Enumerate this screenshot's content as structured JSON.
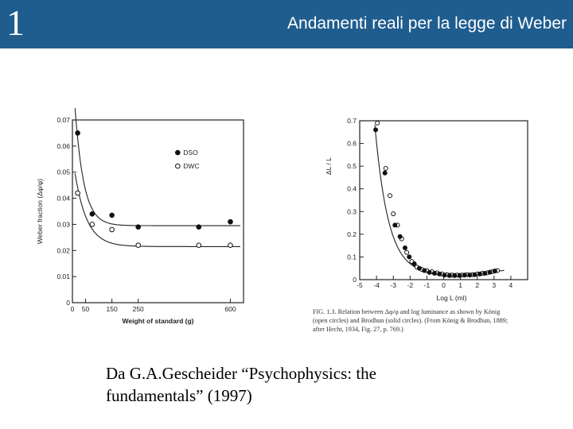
{
  "header": {
    "number": "1",
    "title": "Andamenti reali per la legge di Weber",
    "bg_color": "#1f5d8f"
  },
  "caption": {
    "line1": "Da G.A.Gescheider “Psychophysics: the",
    "line2": "fundamentals” (1997)"
  },
  "chart_data": [
    {
      "type": "scatter",
      "title": "",
      "xlabel": "Weight of standard (g)",
      "ylabel": "Weber fraction (Δφ/φ)",
      "xlim": [
        0,
        650
      ],
      "ylim": [
        0,
        0.07
      ],
      "xticks": [
        0,
        50,
        150,
        250,
        600
      ],
      "xtick_positions": [
        0,
        50,
        150,
        250,
        600
      ],
      "yticks": [
        "0",
        "0.01",
        "0.02",
        "0.03",
        "0.04",
        "0.05",
        "0.06",
        "0.07"
      ],
      "legend": {
        "placement": "top-right",
        "entries": [
          "DSO",
          "DWC"
        ]
      },
      "series": [
        {
          "name": "DSO",
          "marker": "filled-circle",
          "x": [
            20,
            75,
            150,
            250,
            480,
            600
          ],
          "y": [
            0.065,
            0.034,
            0.0335,
            0.029,
            0.029,
            0.031
          ]
        },
        {
          "name": "DWC",
          "marker": "open-circle",
          "x": [
            20,
            75,
            150,
            250,
            480,
            600
          ],
          "y": [
            0.042,
            0.03,
            0.028,
            0.022,
            0.022,
            0.022
          ]
        }
      ]
    },
    {
      "type": "scatter",
      "title": "",
      "xlabel": "Log L (ml)",
      "ylabel": "ΔL / L",
      "xlim": [
        -5,
        5
      ],
      "ylim": [
        0,
        0.7
      ],
      "xticks": [
        -5,
        -4,
        -3,
        -2,
        -1,
        0,
        1,
        2,
        3,
        4
      ],
      "yticks": [
        0,
        0.1,
        0.2,
        0.3,
        0.4,
        0.5,
        0.6,
        0.7
      ],
      "ytick_labels": [
        "0",
        "0.1",
        "0.2",
        "0.3",
        "0.4",
        "0.5",
        "0.6",
        "0.7"
      ],
      "figure_caption": [
        "FIG. 1.3.  Relation between Δφ/φ and log luminance as shown by König",
        "(open circles) and Brodhun (solid circles). (From König & Brodhun, 1889;",
        "after Hecht, 1934, Fig. 27, p. 769.)"
      ],
      "series": [
        {
          "name": "open circles",
          "marker": "open-circle",
          "x": [
            -3.95,
            -3.45,
            -3.2,
            -3.0,
            -2.75,
            -2.5,
            -2.2,
            -1.9,
            -1.6,
            -1.3,
            -1.0,
            -0.7,
            -0.4,
            -0.1,
            0.2,
            0.5,
            0.8,
            1.1,
            1.4,
            1.7,
            2.0,
            2.3,
            2.6,
            2.9,
            3.2
          ],
          "y": [
            0.69,
            0.49,
            0.37,
            0.29,
            0.24,
            0.18,
            0.12,
            0.08,
            0.055,
            0.045,
            0.04,
            0.035,
            0.03,
            0.025,
            0.022,
            0.02,
            0.02,
            0.02,
            0.022,
            0.022,
            0.025,
            0.028,
            0.03,
            0.035,
            0.04
          ]
        },
        {
          "name": "solid circles",
          "marker": "filled-circle",
          "x": [
            -4.05,
            -3.5,
            -2.9,
            -2.6,
            -2.3,
            -2.05,
            -1.75,
            -1.45,
            -1.15,
            -0.85,
            -0.55,
            -0.25,
            0.05,
            0.35,
            0.65,
            0.95,
            1.25,
            1.55,
            1.85,
            2.15,
            2.45,
            2.75,
            3.05
          ],
          "y": [
            0.66,
            0.47,
            0.24,
            0.19,
            0.14,
            0.1,
            0.07,
            0.05,
            0.04,
            0.032,
            0.028,
            0.025,
            0.02,
            0.018,
            0.018,
            0.018,
            0.02,
            0.02,
            0.022,
            0.025,
            0.028,
            0.033,
            0.038
          ]
        }
      ]
    }
  ]
}
